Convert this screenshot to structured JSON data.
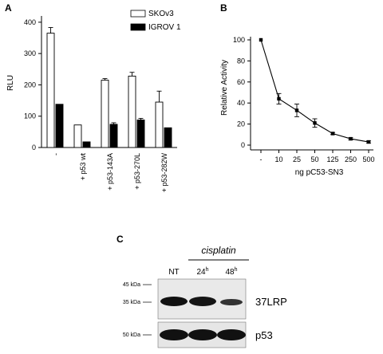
{
  "panel_a": {
    "letter": "A",
    "legend": [
      "SKOv3",
      "IGROV 1"
    ]
  },
  "panel_b": {
    "letter": "B"
  },
  "panel_c": {
    "letter": "C",
    "treatment_label": "cisplatin",
    "lanes": [
      "NT",
      "24",
      "48"
    ],
    "lane_superscripts": [
      "",
      "h",
      "h"
    ],
    "markers_top": [
      "45 kDa",
      "35 kDa"
    ],
    "markers_bottom": [
      "50 kDa"
    ],
    "band_labels": [
      "37LRP",
      "p53"
    ]
  },
  "colors": {
    "skov3": "#ffffff",
    "igrov1": "#000000",
    "line": "#000000"
  },
  "chart_data": [
    {
      "type": "bar",
      "title": "",
      "xlabel": "",
      "ylabel": "RLU",
      "ylim": [
        0,
        420
      ],
      "yticks": [
        0,
        100,
        200,
        300,
        400
      ],
      "categories": [
        "-",
        "+ p53 wt",
        "+ p53-143A",
        "+ p53-270L",
        "+ p53-282W"
      ],
      "series": [
        {
          "name": "SKOv3",
          "values": [
            365,
            72,
            215,
            228,
            145
          ],
          "errors": [
            18,
            0,
            5,
            12,
            35
          ]
        },
        {
          "name": "IGROV 1",
          "values": [
            138,
            18,
            74,
            88,
            63
          ],
          "errors": [
            0,
            0,
            5,
            5,
            0
          ]
        }
      ],
      "legend": "top-right",
      "grid": false
    },
    {
      "type": "line",
      "title": "",
      "xlabel": "ng pC53-SN3",
      "ylabel": "Relative Activity",
      "ylim": [
        0,
        100
      ],
      "yticks": [
        0,
        20,
        40,
        60,
        80,
        100
      ],
      "categories": [
        "-",
        "10",
        "25",
        "50",
        "125",
        "250",
        "500"
      ],
      "values": [
        100,
        44,
        33,
        21,
        11,
        6,
        3
      ],
      "errors": [
        0,
        5,
        6,
        4,
        1,
        1,
        1
      ],
      "grid": false
    }
  ]
}
